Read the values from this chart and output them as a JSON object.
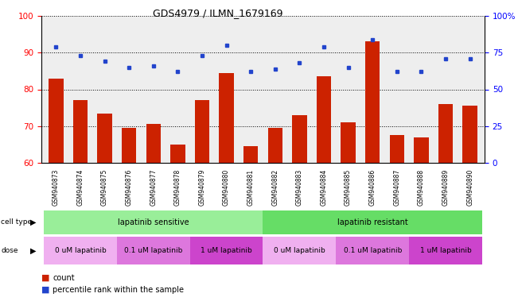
{
  "title": "GDS4979 / ILMN_1679169",
  "samples": [
    "GSM940873",
    "GSM940874",
    "GSM940875",
    "GSM940876",
    "GSM940877",
    "GSM940878",
    "GSM940879",
    "GSM940880",
    "GSM940881",
    "GSM940882",
    "GSM940883",
    "GSM940884",
    "GSM940885",
    "GSM940886",
    "GSM940887",
    "GSM940888",
    "GSM940889",
    "GSM940890"
  ],
  "red_values": [
    83,
    77,
    73.5,
    69.5,
    70.5,
    65,
    77,
    84.5,
    64.5,
    69.5,
    73,
    83.5,
    71,
    93,
    67.5,
    67,
    76,
    75.5
  ],
  "blue_values": [
    79,
    73,
    69,
    65,
    66,
    62,
    73,
    80,
    62,
    64,
    68,
    79,
    65,
    84,
    62,
    62,
    71,
    71
  ],
  "ylim_left": [
    60,
    100
  ],
  "ylim_right": [
    0,
    100
  ],
  "yticks_left": [
    60,
    70,
    80,
    90,
    100
  ],
  "yticks_right": [
    0,
    25,
    50,
    75,
    100
  ],
  "ytick_labels_right": [
    "0",
    "25",
    "50",
    "75",
    "100%"
  ],
  "cell_type_groups": [
    {
      "label": "lapatinib sensitive",
      "start": 0,
      "end": 9,
      "color": "#99ee99"
    },
    {
      "label": "lapatinib resistant",
      "start": 9,
      "end": 18,
      "color": "#66dd66"
    }
  ],
  "dose_groups": [
    {
      "label": "0 uM lapatinib",
      "start": 0,
      "end": 3,
      "color": "#f0b0f0"
    },
    {
      "label": "0.1 uM lapatinib",
      "start": 3,
      "end": 6,
      "color": "#dd77dd"
    },
    {
      "label": "1 uM lapatinib",
      "start": 6,
      "end": 9,
      "color": "#cc44cc"
    },
    {
      "label": "0 uM lapatinib",
      "start": 9,
      "end": 12,
      "color": "#f0b0f0"
    },
    {
      "label": "0.1 uM lapatinib",
      "start": 12,
      "end": 15,
      "color": "#dd77dd"
    },
    {
      "label": "1 uM lapatinib",
      "start": 15,
      "end": 18,
      "color": "#cc44cc"
    }
  ],
  "bar_color": "#cc2200",
  "blue_color": "#2244cc",
  "bg_color": "#ffffff",
  "axis_bg": "#eeeeee",
  "cell_type_label": "cell type",
  "dose_label": "dose",
  "legend_count": "count",
  "legend_pct": "percentile rank within the sample"
}
